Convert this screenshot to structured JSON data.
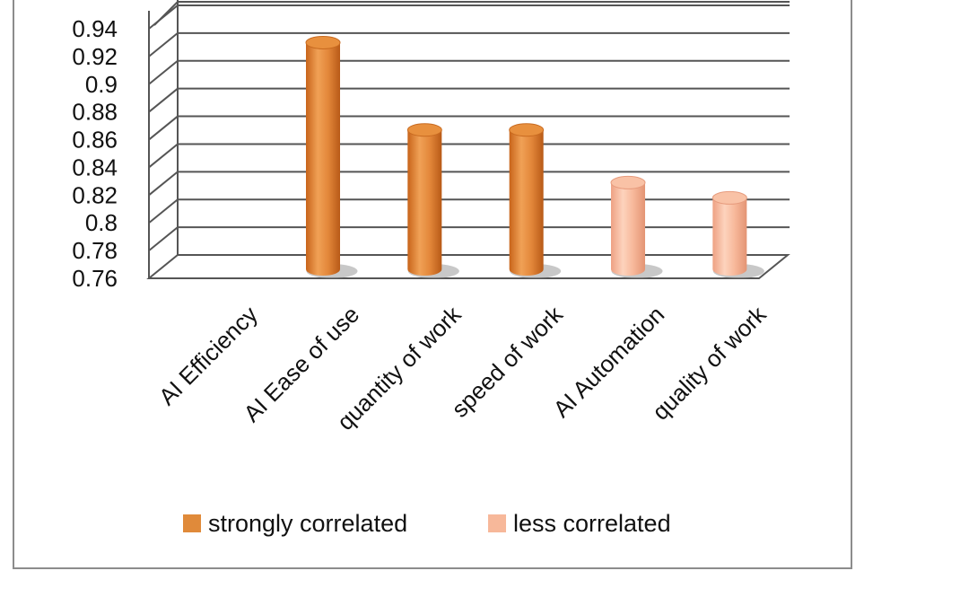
{
  "chart_data": {
    "type": "bar",
    "categories": [
      "AI Efficiency",
      "AI Ease of use",
      "quantity of work",
      "speed of work",
      "AI Automation",
      "quality of work"
    ],
    "series": [
      {
        "name": "strongly correlated",
        "color": "#e08a3a",
        "values": [
          null,
          0.93,
          0.867,
          0.867,
          null,
          null
        ]
      },
      {
        "name": "less correlated",
        "color": "#f7b89a",
        "values": [
          null,
          null,
          null,
          null,
          0.829,
          0.818
        ]
      }
    ],
    "yticks": [
      "0.76",
      "0.78",
      "0.8",
      "0.82",
      "0.84",
      "0.86",
      "0.88",
      "0.9",
      "0.92",
      "0.94"
    ],
    "ylim": [
      0.76,
      0.94
    ],
    "grid": true,
    "legend_position": "bottom",
    "style": "3d-cylinder"
  }
}
